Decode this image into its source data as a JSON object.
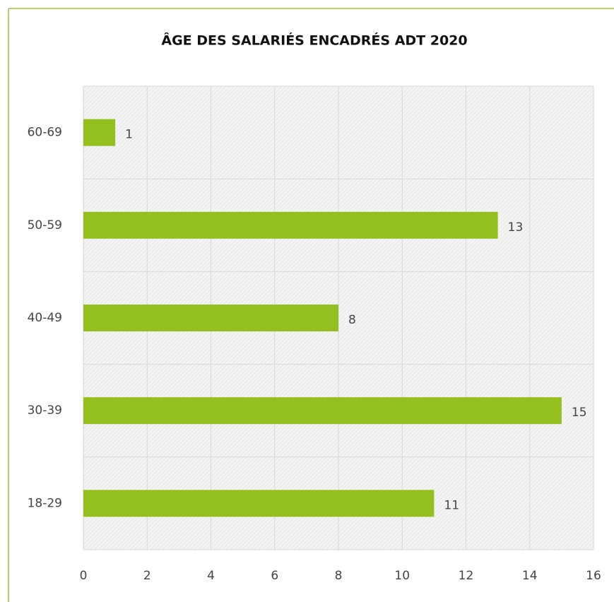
{
  "chart_data": {
    "type": "barh",
    "title": "ÂGE DES SALARIÉS ENCADRÉS ADT 2020",
    "categories": [
      "60-69",
      "50-59",
      "40-49",
      "30-39",
      "18-29"
    ],
    "values": [
      1,
      13,
      8,
      15,
      11
    ],
    "color": "#93c01f",
    "xlim": [
      0,
      16
    ],
    "xticks": [
      0,
      2,
      4,
      6,
      8,
      10,
      12,
      14,
      16
    ],
    "grid": true,
    "data_labels": true
  }
}
